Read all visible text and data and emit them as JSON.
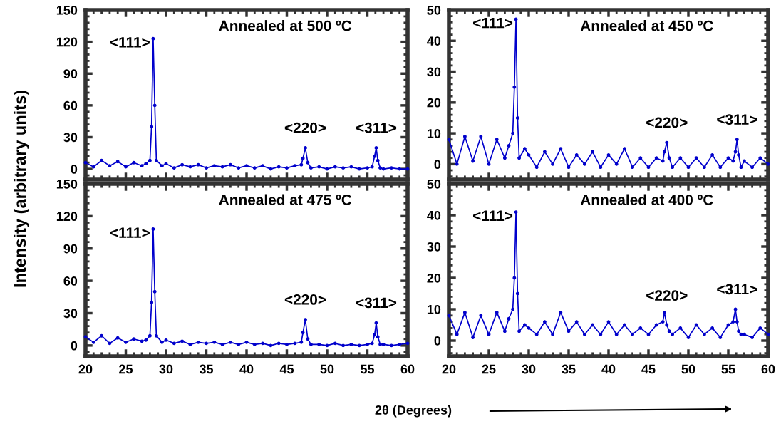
{
  "chart_data": [
    {
      "type": "line",
      "title": "Annealed at 500 ºC",
      "marker": "circle",
      "line_style": "solid",
      "grid": false,
      "tick_labels": "y",
      "x": [
        20,
        21,
        22,
        23,
        24,
        25,
        26,
        27,
        27.5,
        28.0,
        28.2,
        28.4,
        28.6,
        28.8,
        29.5,
        30,
        31,
        32,
        33,
        34,
        35,
        36,
        37,
        38,
        39,
        40,
        41,
        42,
        43,
        44,
        45,
        46,
        46.8,
        47.0,
        47.3,
        47.6,
        48,
        49,
        50,
        51,
        52,
        53,
        54,
        55,
        55.6,
        55.9,
        56.1,
        56.3,
        56.6,
        57,
        58,
        59,
        60
      ],
      "series": [
        {
          "color": "#0000cc",
          "values": [
            6,
            2,
            8,
            3,
            7,
            2,
            6,
            3,
            5,
            8,
            40,
            123,
            60,
            8,
            3,
            5,
            1,
            4,
            2,
            4,
            1,
            3,
            2,
            4,
            1,
            3,
            1,
            3,
            0,
            2,
            1,
            3,
            4,
            10,
            20,
            6,
            1,
            2,
            0,
            2,
            1,
            2,
            0,
            1,
            2,
            12,
            20,
            8,
            1,
            0,
            1,
            0,
            0
          ]
        }
      ],
      "xlim": [
        20,
        60
      ],
      "xticks": [
        20,
        25,
        30,
        35,
        40,
        45,
        50,
        55,
        60
      ],
      "ylim": [
        -10,
        150
      ],
      "yticks": [
        0,
        30,
        60,
        90,
        120,
        150
      ],
      "annotations": [
        {
          "text": "<111>",
          "x": 28.4,
          "y": 123
        },
        {
          "text": "<220>",
          "x": 47.3,
          "y": 20
        },
        {
          "text": "<311>",
          "x": 56.1,
          "y": 20
        }
      ]
    },
    {
      "type": "line",
      "title": "Annealed at 450 ºC",
      "marker": "circle",
      "line_style": "solid",
      "grid": false,
      "tick_labels": "y",
      "x": [
        20,
        21,
        22,
        23,
        24,
        25,
        26,
        27,
        27.5,
        28.0,
        28.2,
        28.4,
        28.6,
        28.8,
        29.5,
        30,
        31,
        32,
        33,
        34,
        35,
        36,
        37,
        38,
        39,
        40,
        41,
        42,
        43,
        44,
        45,
        46,
        46.8,
        47.0,
        47.3,
        47.6,
        48,
        49,
        50,
        51,
        52,
        53,
        54,
        55,
        55.6,
        55.9,
        56.1,
        56.3,
        56.6,
        57,
        58,
        59,
        60
      ],
      "series": [
        {
          "color": "#0000cc",
          "values": [
            8,
            0,
            9,
            1,
            9,
            0,
            8,
            2,
            6,
            10,
            25,
            47,
            15,
            2,
            5,
            3,
            -1,
            4,
            0,
            5,
            -1,
            3,
            0,
            4,
            -1,
            3,
            0,
            5,
            -1,
            2,
            -1,
            2,
            1,
            4,
            7,
            2,
            -1,
            2,
            -1,
            2,
            -1,
            3,
            -1,
            2,
            1,
            4,
            8,
            3,
            -1,
            1,
            -1,
            2,
            0
          ]
        }
      ],
      "xlim": [
        20,
        60
      ],
      "xticks": [
        20,
        25,
        30,
        35,
        40,
        45,
        50,
        55,
        60
      ],
      "ylim": [
        -5,
        50
      ],
      "yticks": [
        0,
        10,
        20,
        30,
        40,
        50
      ],
      "annotations": [
        {
          "text": "<111>",
          "x": 28.4,
          "y": 47
        },
        {
          "text": "<220>",
          "x": 47.3,
          "y": 7
        },
        {
          "text": "<311>",
          "x": 56.1,
          "y": 8
        }
      ]
    },
    {
      "type": "line",
      "title": "Annealed at 475 ºC",
      "marker": "circle",
      "line_style": "solid",
      "grid": false,
      "xlabel": "2θ (Degrees)",
      "ylabel": "Intensity (arbitrary units)",
      "x": [
        20,
        21,
        22,
        23,
        24,
        25,
        26,
        27,
        27.5,
        28.0,
        28.2,
        28.4,
        28.6,
        28.8,
        29.5,
        30,
        31,
        32,
        33,
        34,
        35,
        36,
        37,
        38,
        39,
        40,
        41,
        42,
        43,
        44,
        45,
        46,
        46.8,
        47.0,
        47.3,
        47.6,
        48,
        49,
        50,
        51,
        52,
        53,
        54,
        55,
        55.6,
        55.9,
        56.1,
        56.3,
        56.6,
        57,
        58,
        59,
        60
      ],
      "series": [
        {
          "color": "#0000cc",
          "values": [
            8,
            3,
            9,
            2,
            7,
            3,
            6,
            4,
            5,
            9,
            40,
            108,
            50,
            9,
            3,
            5,
            2,
            4,
            1,
            3,
            2,
            3,
            1,
            3,
            1,
            3,
            1,
            2,
            0,
            2,
            1,
            2,
            3,
            12,
            24,
            6,
            1,
            1,
            0,
            2,
            0,
            1,
            0,
            1,
            2,
            10,
            21,
            8,
            1,
            1,
            0,
            1,
            2
          ]
        }
      ],
      "xlim": [
        20,
        60
      ],
      "xticks": [
        20,
        25,
        30,
        35,
        40,
        45,
        50,
        55,
        60
      ],
      "ylim": [
        -10,
        150
      ],
      "yticks": [
        0,
        30,
        60,
        90,
        120,
        150
      ],
      "annotations": [
        {
          "text": "<111>",
          "x": 28.4,
          "y": 108
        },
        {
          "text": "<220>",
          "x": 47.3,
          "y": 24
        },
        {
          "text": "<311>",
          "x": 56.1,
          "y": 21
        }
      ]
    },
    {
      "type": "line",
      "title": "Annealed at 400 ºC",
      "marker": "circle",
      "line_style": "solid",
      "grid": false,
      "x": [
        20,
        21,
        22,
        23,
        24,
        25,
        26,
        27,
        27.5,
        28.0,
        28.2,
        28.4,
        28.6,
        28.8,
        29.5,
        30,
        31,
        32,
        33,
        34,
        35,
        36,
        37,
        38,
        39,
        40,
        41,
        42,
        43,
        44,
        45,
        46,
        46.8,
        47.0,
        47.3,
        47.6,
        48,
        49,
        50,
        51,
        52,
        53,
        54,
        55,
        55.6,
        55.9,
        56.1,
        56.3,
        56.6,
        57,
        58,
        59,
        60
      ],
      "series": [
        {
          "color": "#0000cc",
          "values": [
            8,
            2,
            9,
            1,
            8,
            2,
            9,
            3,
            7,
            10,
            20,
            41,
            15,
            3,
            5,
            4,
            2,
            6,
            2,
            9,
            3,
            6,
            2,
            5,
            2,
            6,
            2,
            5,
            2,
            4,
            2,
            5,
            6,
            9,
            5,
            3,
            2,
            4,
            1,
            5,
            2,
            4,
            1,
            5,
            6,
            10,
            6,
            3,
            2,
            2,
            1,
            4,
            2
          ]
        }
      ],
      "xlim": [
        20,
        60
      ],
      "xticks": [
        20,
        25,
        30,
        35,
        40,
        45,
        50,
        55,
        60
      ],
      "ylim": [
        -5,
        50
      ],
      "yticks": [
        0,
        10,
        20,
        30,
        40,
        50
      ],
      "annotations": [
        {
          "text": "<111>",
          "x": 28.4,
          "y": 41
        },
        {
          "text": "<220>",
          "x": 47.3,
          "y": 8
        },
        {
          "text": "<311>",
          "x": 56.1,
          "y": 10
        }
      ]
    }
  ]
}
